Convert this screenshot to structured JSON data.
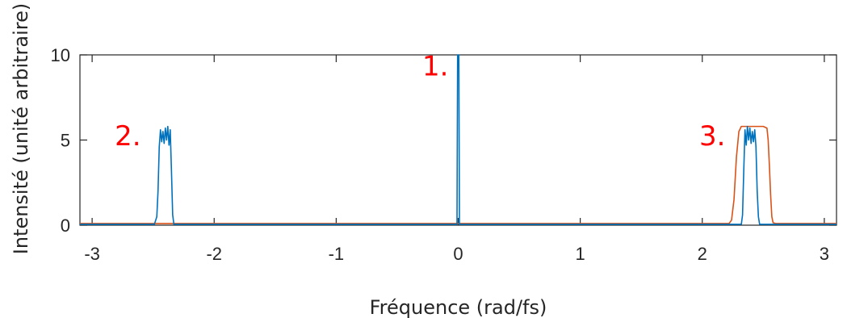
{
  "chart_data": {
    "type": "line",
    "title": "",
    "xlabel": "Fréquence (rad/fs)",
    "ylabel": "Intensité (unité arbitraire)",
    "xlim": [
      -3.1,
      3.1
    ],
    "ylim": [
      0,
      10
    ],
    "x_ticks": [
      -3,
      -2,
      -1,
      0,
      1,
      2,
      3
    ],
    "x_tick_labels": [
      "-3",
      "-2",
      "-1",
      "0",
      "1",
      "2",
      "3"
    ],
    "y_ticks": [
      0,
      5,
      10
    ],
    "y_tick_labels": [
      "0",
      "5",
      "10"
    ],
    "grid": false,
    "legend": "none",
    "series": [
      {
        "color": "#0072BD",
        "x": [
          -3.1,
          -2.49,
          -2.47,
          -2.46,
          -2.45,
          -2.44,
          -2.43,
          -2.42,
          -2.41,
          -2.4,
          -2.39,
          -2.38,
          -2.37,
          -2.36,
          -2.35,
          -2.34,
          -2.33,
          -2.32,
          -2.3,
          -0.01,
          -0.005,
          0.0,
          0.005,
          0.01,
          2.3,
          2.32,
          2.33,
          2.34,
          2.35,
          2.36,
          2.37,
          2.38,
          2.39,
          2.4,
          2.41,
          2.42,
          2.43,
          2.44,
          2.45,
          2.46,
          2.47,
          2.49,
          3.1
        ],
        "y": [
          0.05,
          0.05,
          0.5,
          2.0,
          4.6,
          5.6,
          4.9,
          5.5,
          4.8,
          5.7,
          5.0,
          5.8,
          4.7,
          5.6,
          3.2,
          0.6,
          0.05,
          0.05,
          0.05,
          0.05,
          10,
          10,
          10,
          0.05,
          0.05,
          0.05,
          0.6,
          3.2,
          5.6,
          4.7,
          5.8,
          5.0,
          5.7,
          4.8,
          5.5,
          4.9,
          5.6,
          4.6,
          2.0,
          0.5,
          0.05,
          0.05,
          0.05
        ]
      },
      {
        "color": "#D95319",
        "x": [
          -3.1,
          2.22,
          2.24,
          2.26,
          2.28,
          2.3,
          2.32,
          2.35,
          2.4,
          2.5,
          2.53,
          2.54,
          2.55,
          2.56,
          2.57,
          2.58,
          2.6,
          3.1
        ],
        "y": [
          0.1,
          0.1,
          0.3,
          1.5,
          4.0,
          5.5,
          5.8,
          5.8,
          5.8,
          5.8,
          5.7,
          5.0,
          3.5,
          1.8,
          0.5,
          0.15,
          0.1,
          0.1
        ]
      }
    ],
    "annotations": [
      {
        "text": "1.",
        "x": -0.08,
        "y": 8.8,
        "color": "#ff0000"
      },
      {
        "text": "2.",
        "x": -2.6,
        "y": 4.7,
        "color": "#ff0000"
      },
      {
        "text": "3.",
        "x": 2.19,
        "y": 4.7,
        "color": "#ff0000"
      }
    ]
  }
}
